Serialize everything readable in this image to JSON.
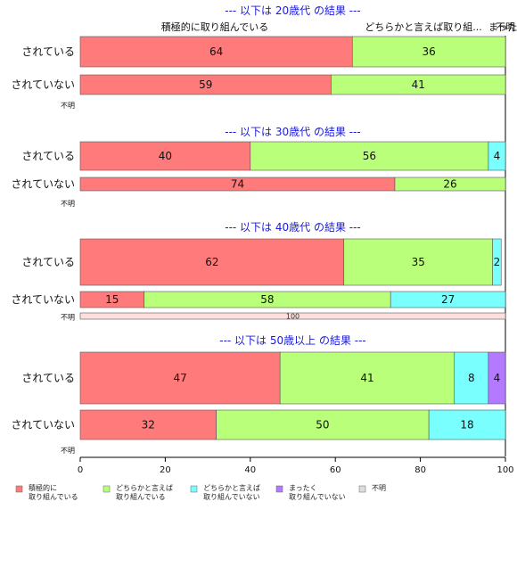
{
  "chart_data": {
    "type": "bar",
    "orientation": "horizontal",
    "stacked": true,
    "xlim": [
      0,
      100
    ],
    "x_ticks": [
      0,
      20,
      40,
      60,
      80,
      100
    ],
    "top_labels": [
      "積極的に取り組んでいる",
      "どちらかと言えば取り組...",
      "まった",
      "不明"
    ],
    "legend_position": "bottom",
    "categories": [
      {
        "name": "積極的に\n取り組んでいる",
        "color": "#ff7a7a"
      },
      {
        "name": "どちらかと言えば\n取り組んでいる",
        "color": "#baff7a"
      },
      {
        "name": "どちらかと言えば\n取り組んでいない",
        "color": "#7affff"
      },
      {
        "name": "まったく\n取り組んでいない",
        "color": "#b37aff"
      },
      {
        "name": "不明",
        "color": "#dddddd"
      }
    ],
    "groups": [
      {
        "title": "--- 以下は 20歳代 の結果 ---",
        "rows": [
          {
            "label": "されている",
            "values": [
              64,
              36,
              0,
              0,
              0
            ]
          },
          {
            "label": "されていない",
            "values": [
              59,
              41,
              0,
              0,
              0
            ]
          },
          {
            "label": "不明",
            "values": [
              0,
              0,
              0,
              0,
              0
            ]
          }
        ]
      },
      {
        "title": "--- 以下は 30歳代 の結果 ---",
        "rows": [
          {
            "label": "されている",
            "values": [
              40,
              56,
              4,
              0,
              0
            ]
          },
          {
            "label": "されていない",
            "values": [
              74,
              26,
              0,
              0,
              0
            ]
          },
          {
            "label": "不明",
            "values": [
              0,
              0,
              0,
              0,
              0
            ]
          }
        ]
      },
      {
        "title": "--- 以下は 40歳代 の結果 ---",
        "rows": [
          {
            "label": "されている",
            "values": [
              62,
              35,
              2,
              0,
              0
            ]
          },
          {
            "label": "されていない",
            "values": [
              15,
              58,
              27,
              0,
              0
            ]
          },
          {
            "label": "不明",
            "values": [
              100,
              0,
              0,
              0,
              0
            ]
          }
        ]
      },
      {
        "title": "--- 以下は 50歳以上 の結果 ---",
        "rows": [
          {
            "label": "されている",
            "values": [
              47,
              41,
              8,
              4,
              0
            ]
          },
          {
            "label": "されていない",
            "values": [
              32,
              50,
              18,
              0,
              0
            ]
          },
          {
            "label": "不明",
            "values": [
              0,
              0,
              0,
              0,
              0
            ]
          }
        ]
      }
    ]
  }
}
